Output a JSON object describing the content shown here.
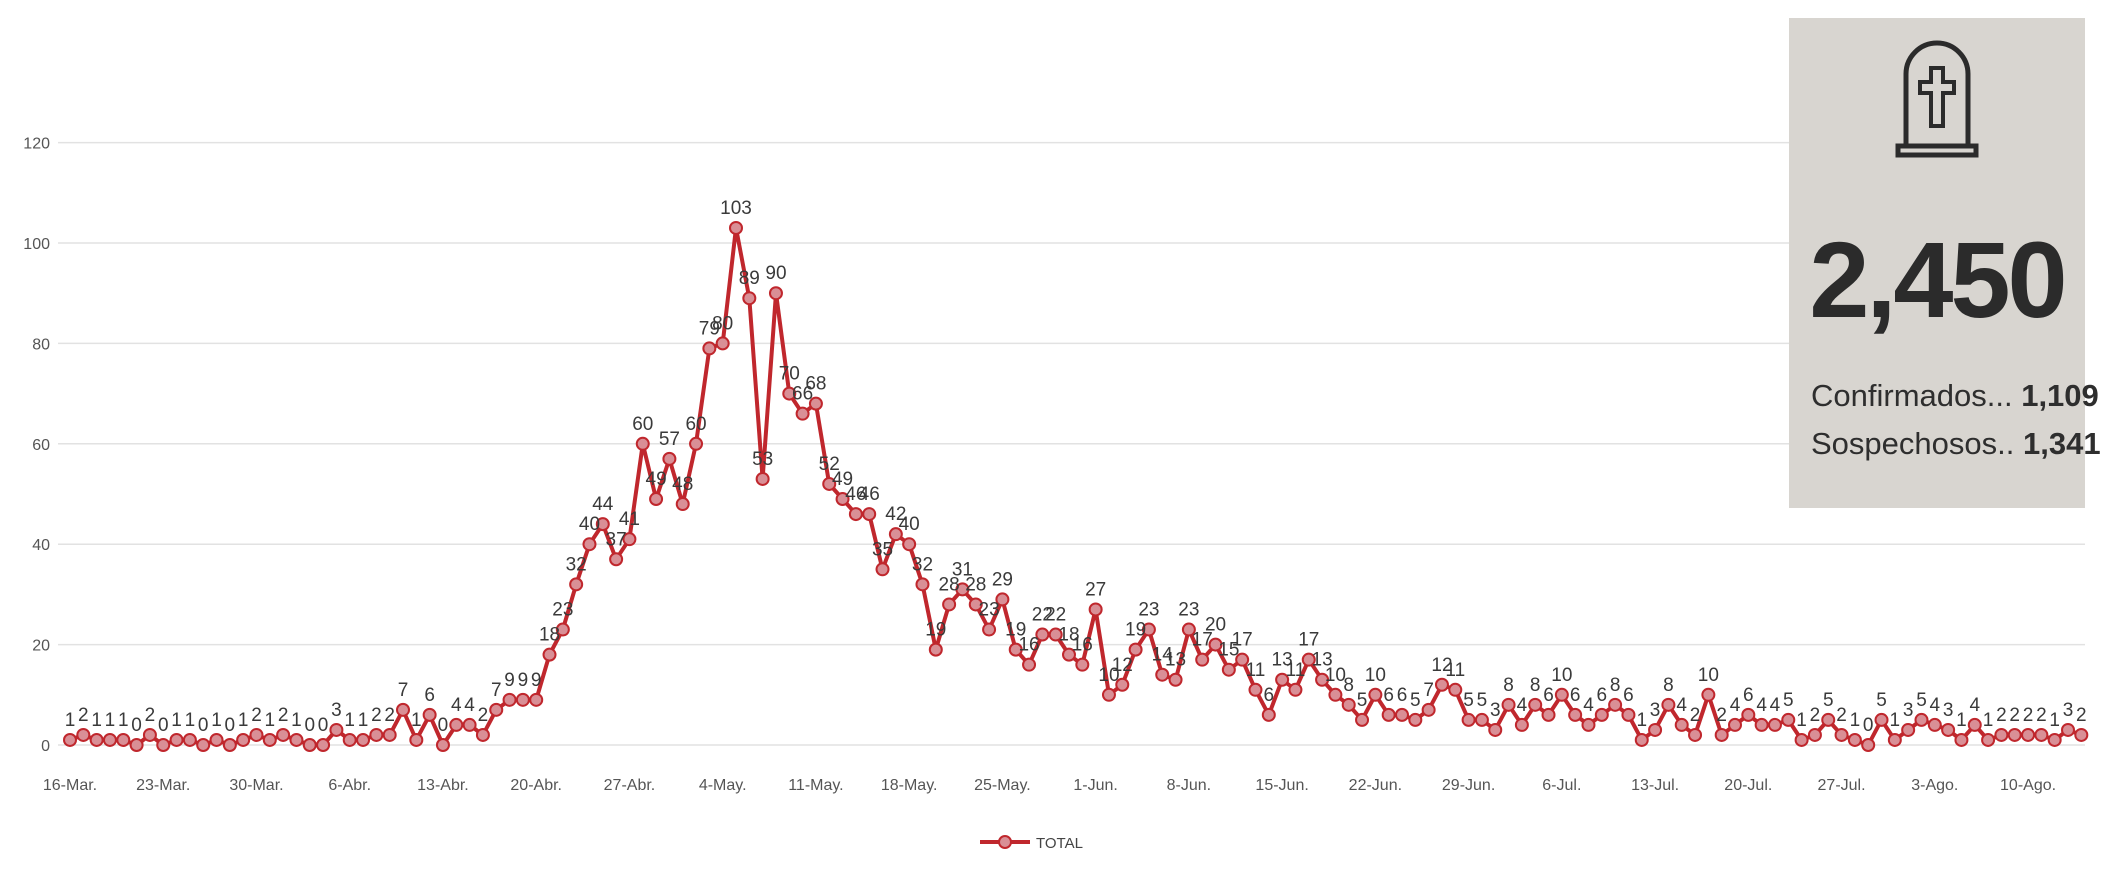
{
  "chart_data": {
    "type": "line",
    "title": "",
    "xlabel": "",
    "ylabel": "",
    "ylim": [
      0,
      120
    ],
    "y_ticks": [
      "0",
      "20",
      "40",
      "60",
      "80",
      "100",
      "120"
    ],
    "grid": "horizontal",
    "legend_position": "bottom-center",
    "start_date": "16-Mar.",
    "x_tick_labels": [
      "16-Mar.",
      "23-Mar.",
      "30-Mar.",
      "6-Abr.",
      "13-Abr.",
      "20-Abr.",
      "27-Abr.",
      "4-May.",
      "11-May.",
      "18-May.",
      "25-May.",
      "1-Jun.",
      "8-Jun.",
      "15-Jun.",
      "22-Jun.",
      "29-Jun.",
      "6-Jul.",
      "13-Jul.",
      "20-Jul.",
      "27-Jul.",
      "3-Ago.",
      "10-Ago."
    ],
    "series": [
      {
        "name": "TOTAL",
        "color": "#c0272d",
        "marker_color": "#d98f96",
        "values": [
          1,
          2,
          1,
          1,
          1,
          0,
          2,
          0,
          1,
          1,
          0,
          1,
          0,
          1,
          2,
          1,
          2,
          1,
          0,
          0,
          3,
          1,
          1,
          2,
          2,
          7,
          1,
          6,
          0,
          4,
          4,
          2,
          7,
          9,
          9,
          9,
          18,
          23,
          32,
          40,
          44,
          37,
          41,
          60,
          49,
          57,
          48,
          60,
          79,
          80,
          103,
          89,
          53,
          90,
          70,
          66,
          68,
          52,
          49,
          46,
          46,
          35,
          42,
          40,
          32,
          19,
          28,
          31,
          28,
          23,
          29,
          19,
          16,
          22,
          22,
          18,
          16,
          27,
          10,
          12,
          19,
          23,
          14,
          13,
          23,
          17,
          20,
          15,
          17,
          11,
          6,
          13,
          11,
          17,
          13,
          10,
          8,
          5,
          10,
          6,
          6,
          5,
          7,
          12,
          11,
          5,
          5,
          3,
          8,
          4,
          8,
          6,
          10,
          6,
          4,
          6,
          8,
          6,
          1,
          3,
          8,
          4,
          2,
          10,
          2,
          4,
          6,
          4,
          4,
          5,
          1,
          2,
          5,
          2,
          1,
          0,
          5,
          1,
          3,
          5,
          4,
          3,
          1,
          4,
          1,
          2,
          2,
          2,
          2,
          1,
          3,
          2
        ]
      }
    ]
  },
  "summary": {
    "icon": "tombstone-cross-icon",
    "total": "2,450",
    "confirmed_label": "Confirmados...",
    "confirmed_value": "1,109",
    "suspected_label": "Sospechosos..",
    "suspected_value": "1,341",
    "background": "#d8d5d0"
  }
}
